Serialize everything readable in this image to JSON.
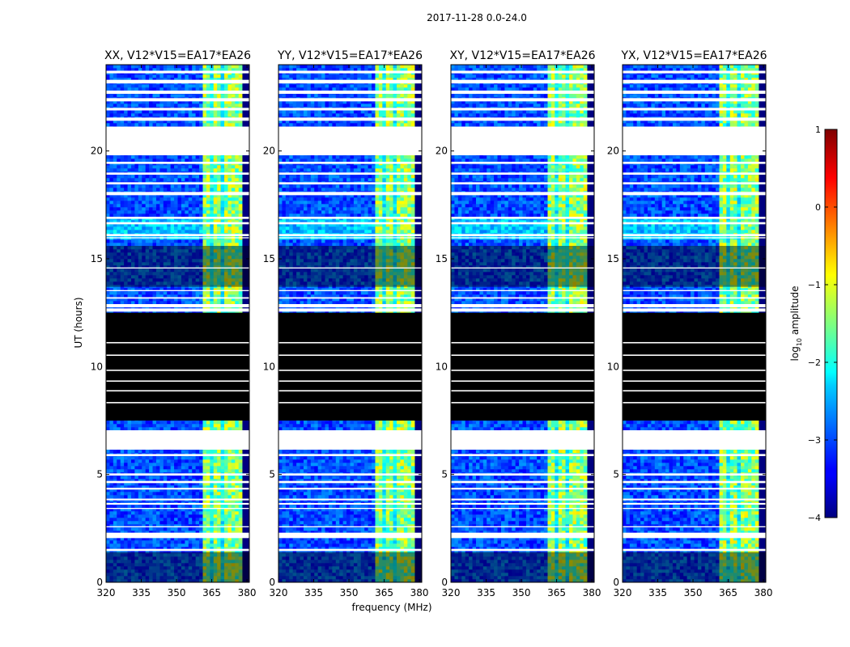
{
  "figure": {
    "suptitle": "2017-11-28 0.0-24.0",
    "xlabel": "frequency (MHz)",
    "ylabel": "UT (hours)"
  },
  "chart_data": {
    "type": "heatmap",
    "x_range": [
      320,
      381
    ],
    "y_range": [
      0,
      24
    ],
    "x_ticks": [
      320,
      335,
      350,
      365,
      380
    ],
    "x_tick_labels": [
      "320",
      "335",
      "350",
      "365",
      "380"
    ],
    "y_ticks": [
      0,
      5,
      10,
      15,
      20
    ],
    "y_tick_labels": [
      "0",
      "5",
      "10",
      "15",
      "20"
    ],
    "bright_band_mhz": [
      360.5,
      378.5
    ],
    "bright_columns_mhz": [
      [
        360.5,
        363.6
      ],
      [
        365.1,
        368.2
      ],
      [
        369.6,
        372.7
      ],
      [
        374.1,
        378.5
      ]
    ],
    "flagged_hours": [
      [
        21.0,
        21.13
      ],
      [
        21.4,
        21.55
      ],
      [
        21.88,
        22.0
      ],
      [
        22.3,
        22.45
      ],
      [
        22.65,
        22.8
      ],
      [
        23.13,
        23.3
      ],
      [
        23.6,
        23.72
      ],
      [
        19.8,
        21.0
      ],
      [
        19.4,
        19.5
      ],
      [
        18.9,
        19.0
      ],
      [
        18.45,
        18.55
      ],
      [
        17.95,
        18.1
      ],
      [
        16.85,
        16.95
      ],
      [
        16.6,
        16.7
      ],
      [
        16.05,
        16.15
      ],
      [
        15.95,
        16.0
      ],
      [
        14.55,
        14.6
      ],
      [
        13.5,
        13.55
      ],
      [
        13.15,
        13.22
      ],
      [
        12.55,
        12.7
      ],
      [
        12.75,
        12.9
      ],
      [
        11.08,
        11.14
      ],
      [
        10.5,
        10.56
      ],
      [
        9.8,
        9.86
      ],
      [
        9.3,
        9.36
      ],
      [
        8.85,
        8.91
      ],
      [
        8.3,
        8.36
      ],
      [
        6.15,
        7.05
      ],
      [
        5.85,
        5.95
      ],
      [
        4.95,
        5.05
      ],
      [
        4.6,
        4.7
      ],
      [
        4.3,
        4.38
      ],
      [
        3.8,
        3.88
      ],
      [
        3.6,
        3.68
      ],
      [
        3.4,
        3.45
      ],
      [
        2.55,
        2.6
      ],
      [
        2.05,
        2.3
      ],
      [
        1.45,
        1.55
      ]
    ],
    "dark_hours": [
      [
        7.5,
        12.5
      ],
      [
        13.7,
        15.6
      ],
      [
        0.0,
        1.4
      ]
    ],
    "panels": [
      {
        "title": "XX, V12*V15=EA17*EA26",
        "pol": "XX"
      },
      {
        "title": "YY, V12*V15=EA17*EA26",
        "pol": "YY"
      },
      {
        "title": "XY, V12*V15=EA17*EA26",
        "pol": "XY"
      },
      {
        "title": "YX, V12*V15=EA17*EA26",
        "pol": "YX"
      }
    ],
    "colorbar": {
      "label_main": "log",
      "label_sub": "10",
      "label_tail": " amplitude",
      "range": [
        -4,
        1
      ],
      "ticks": [
        1,
        0,
        -1,
        -2,
        -3,
        -4
      ],
      "tick_labels": [
        "1",
        "0",
        "−1",
        "−2",
        "−3",
        "−4"
      ],
      "colormap": "jet"
    }
  },
  "colors": {
    "flagged": "#ffffff",
    "dark": "#000000",
    "blank": "#000080"
  }
}
